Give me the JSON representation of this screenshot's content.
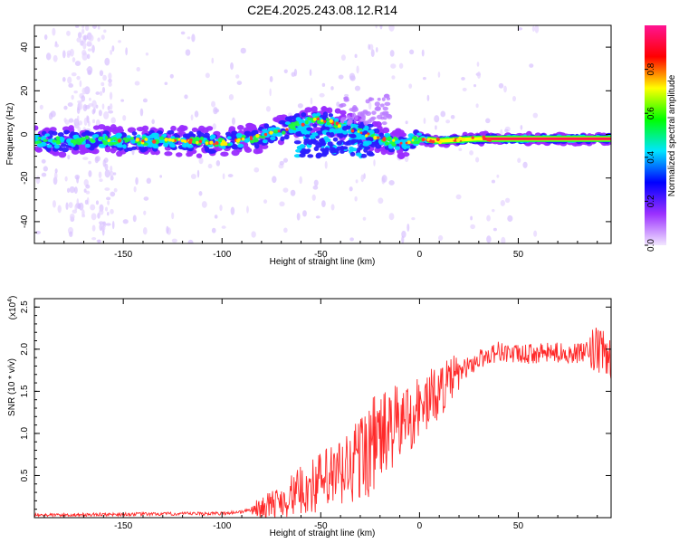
{
  "title": "C2E4.2025.243.08.12.R14",
  "chart_data": [
    {
      "type": "heatmap",
      "xlabel": "Height of straight line (km)",
      "ylabel": "Frequency (Hz)",
      "xlim": [
        -195,
        97
      ],
      "ylim": [
        -50,
        50
      ],
      "xticks": [
        -150,
        -100,
        -50,
        0,
        50
      ],
      "yticks": [
        -40,
        -20,
        0,
        20,
        40
      ],
      "ridge": {
        "x": [
          -195,
          -150,
          -120,
          -100,
          -80,
          -70,
          -60,
          -50,
          -40,
          -30,
          -20,
          -10,
          0,
          10,
          30,
          50,
          97
        ],
        "freq": [
          -3,
          -3,
          -3,
          -4,
          -1,
          2,
          5,
          7,
          4,
          1,
          -2,
          -4,
          -2,
          -3,
          -2,
          -2,
          -2
        ]
      }
    },
    {
      "type": "colorbar",
      "label": "Normalized spectral amplitude",
      "range": [
        0,
        1
      ],
      "ticks": [
        "0.0",
        "0.2",
        "0.4",
        "0.6",
        "0.8"
      ],
      "colors": [
        "#f2e6ff",
        "#9b30ff",
        "#0000ff",
        "#00e5ff",
        "#00ff00",
        "#ffff00",
        "#ff0000",
        "#ff1493"
      ]
    },
    {
      "type": "line",
      "xlabel": "Height of straight line (km)",
      "ylabel": "SNR (10 * v/v)",
      "multiplier": "(x10",
      "multiplier_exp": "4",
      "multiplier_close": ")",
      "xlim": [
        -195,
        97
      ],
      "ylim": [
        0,
        2.6
      ],
      "xticks": [
        -150,
        -100,
        -50,
        0,
        50
      ],
      "yticks": [
        "0.5",
        "1.0",
        "1.5",
        "2.0",
        "2.5"
      ],
      "color": "#ff2a2a",
      "trend": {
        "x": [
          -195,
          -100,
          -90,
          -80,
          -70,
          -60,
          -50,
          -40,
          -30,
          -20,
          -10,
          0,
          10,
          20,
          30,
          40,
          50,
          60,
          70,
          80,
          90,
          97
        ],
        "y": [
          0.03,
          0.05,
          0.07,
          0.12,
          0.2,
          0.32,
          0.42,
          0.5,
          0.72,
          0.95,
          1.12,
          1.3,
          1.5,
          1.72,
          1.88,
          1.98,
          1.93,
          1.95,
          1.96,
          1.95,
          1.98,
          1.9
        ]
      }
    }
  ]
}
